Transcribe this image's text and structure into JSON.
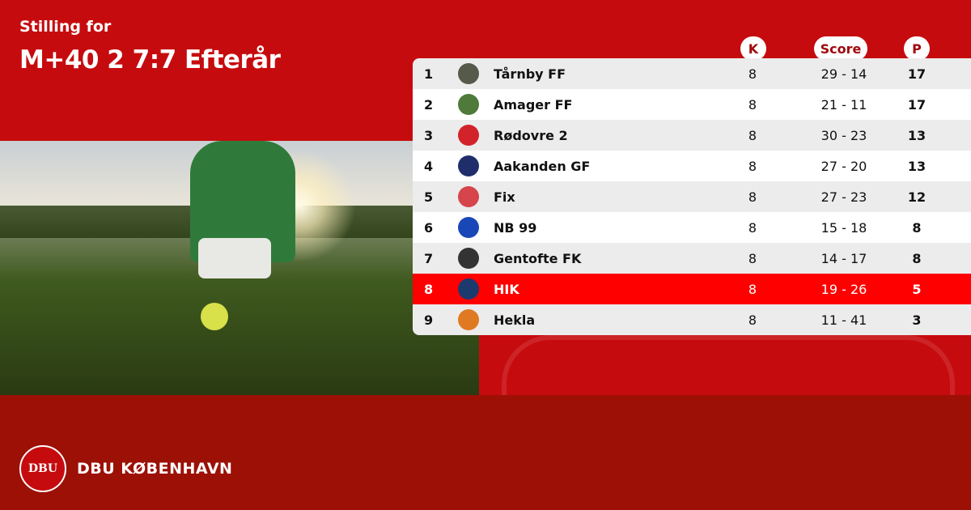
{
  "header": {
    "subtitle": "Stilling for",
    "title": "M+40 2 7:7 Efterår"
  },
  "columns": {
    "k": "K",
    "score": "Score",
    "p": "P"
  },
  "colors": {
    "primary": "#c60b0e",
    "footer": "#9c1006",
    "highlight": "#ff0000"
  },
  "rows": [
    {
      "pos": "1",
      "team": "Tårnby FF",
      "k": "8",
      "score": "29 - 14",
      "p": "17",
      "logo_color": "#555a4a"
    },
    {
      "pos": "2",
      "team": "Amager FF",
      "k": "8",
      "score": "21 - 11",
      "p": "17",
      "logo_color": "#4f7a3a"
    },
    {
      "pos": "3",
      "team": "Rødovre 2",
      "k": "8",
      "score": "30 - 23",
      "p": "13",
      "logo_color": "#d2232a"
    },
    {
      "pos": "4",
      "team": "Aakanden GF",
      "k": "8",
      "score": "27 - 20",
      "p": "13",
      "logo_color": "#1f2e6b"
    },
    {
      "pos": "5",
      "team": "Fix",
      "k": "8",
      "score": "27 - 23",
      "p": "12",
      "logo_color": "#d6454c"
    },
    {
      "pos": "6",
      "team": "NB 99",
      "k": "8",
      "score": "15 - 18",
      "p": "8",
      "logo_color": "#1a47b8"
    },
    {
      "pos": "7",
      "team": "Gentofte FK",
      "k": "8",
      "score": "14 - 17",
      "p": "8",
      "logo_color": "#333333"
    },
    {
      "pos": "8",
      "team": "HIK",
      "k": "8",
      "score": "19 - 26",
      "p": "5",
      "logo_color": "#1c3a6e",
      "highlighted": true
    },
    {
      "pos": "9",
      "team": "Hekla",
      "k": "8",
      "score": "11 - 41",
      "p": "3",
      "logo_color": "#e07a22"
    }
  ],
  "footer": {
    "brand": "DBU KØBENHAVN",
    "logo_text": "DBU"
  }
}
